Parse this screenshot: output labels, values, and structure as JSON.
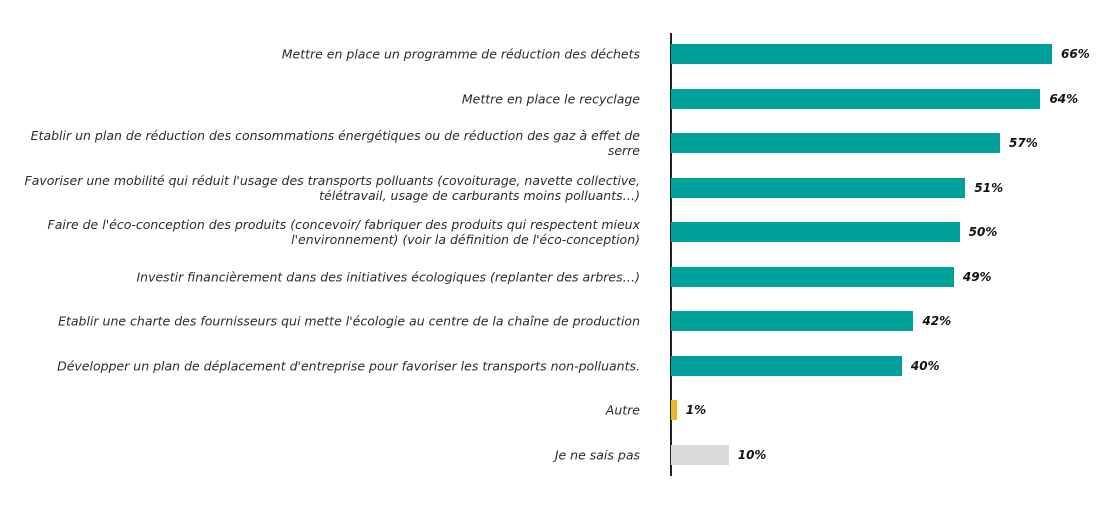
{
  "chart_data": {
    "type": "bar",
    "orientation": "horizontal",
    "categories": [
      "Mettre en place un programme de réduction des déchets",
      "Mettre en place le recyclage",
      "Etablir un plan de réduction des consommations énergétiques ou de réduction des gaz à effet de serre",
      "Favoriser une mobilité qui réduit l'usage des transports polluants (covoiturage, navette collective, télétravail, usage de carburants moins polluants…)",
      "Faire de l'éco-conception des produits (concevoir/ fabriquer des produits qui respectent mieux l'environnement) (voir la définition de l'éco-conception)",
      "Investir financièrement dans des initiatives écologiques (replanter des arbres…)",
      "Etablir une charte des fournisseurs qui mette l'écologie au centre de la chaîne de production",
      "Développer un plan de déplacement d'entreprise pour favoriser les transports non-polluants.",
      "Autre",
      "Je ne sais pas"
    ],
    "values": [
      66,
      64,
      57,
      51,
      50,
      49,
      42,
      40,
      1,
      10
    ],
    "value_labels": [
      "66%",
      "64%",
      "57%",
      "51%",
      "50%",
      "49%",
      "42%",
      "40%",
      "1%",
      "10%"
    ],
    "colors": [
      "#00a19a",
      "#00a19a",
      "#00a19a",
      "#00a19a",
      "#00a19a",
      "#00a19a",
      "#00a19a",
      "#00a19a",
      "#f0b429",
      "#d9d9d9"
    ],
    "xlim": [
      0,
      66
    ],
    "grid": false,
    "legend": "none"
  }
}
